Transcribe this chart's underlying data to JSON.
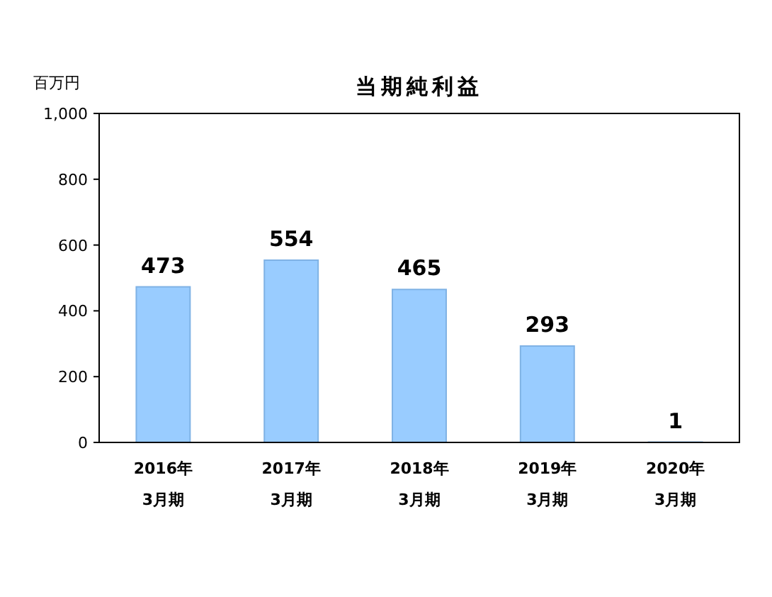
{
  "chart_data": {
    "type": "bar",
    "title": "当期純利益",
    "ylabel": "百万円",
    "categories": [
      "2016年\n3月期",
      "2017年\n3月期",
      "2018年\n3月期",
      "2019年\n3月期",
      "2020年\n3月期"
    ],
    "values": [
      473,
      554,
      465,
      293,
      1
    ],
    "color": "#99ccff",
    "ylim": [
      0,
      1000
    ],
    "yticks": [
      0,
      200,
      400,
      600,
      800,
      {
        "value": 1000,
        "label": "1,000"
      }
    ],
    "data_labels": true
  }
}
